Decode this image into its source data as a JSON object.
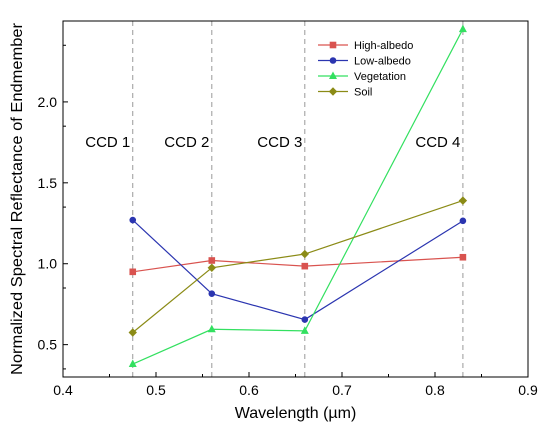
{
  "chart_data": {
    "type": "line",
    "title": "",
    "xlabel": "Wavelength (µm)",
    "ylabel": "Normalized Spectral Reflectance of Endmember",
    "xlim": [
      0.4,
      0.9
    ],
    "ylim": [
      0.3,
      2.5
    ],
    "xticks": [
      "0.4",
      "0.5",
      "0.6",
      "0.7",
      "0.8",
      "0.9"
    ],
    "yticks": [
      "0.5",
      "1.0",
      "1.5",
      "2.0"
    ],
    "x": [
      0.475,
      0.56,
      0.66,
      0.83
    ],
    "series": [
      {
        "name": "High-albedo",
        "color": "#d9534f",
        "marker": "square",
        "values": [
          0.95,
          1.02,
          0.985,
          1.04
        ]
      },
      {
        "name": "Low-albedo",
        "color": "#2b35b0",
        "marker": "circle",
        "values": [
          1.27,
          0.815,
          0.655,
          1.265
        ]
      },
      {
        "name": "Vegetation",
        "color": "#33e060",
        "marker": "triangle",
        "values": [
          0.38,
          0.595,
          0.585,
          2.45
        ]
      },
      {
        "name": "Soil",
        "color": "#8b8b16",
        "marker": "diamond",
        "values": [
          0.575,
          0.975,
          1.06,
          1.39
        ]
      }
    ],
    "ccd_bands": [
      {
        "label": "CCD 1",
        "x": 0.475
      },
      {
        "label": "CCD 2",
        "x": 0.56
      },
      {
        "label": "CCD 3",
        "x": 0.66
      },
      {
        "label": "CCD 4",
        "x": 0.83
      }
    ],
    "legend_position": "top-right",
    "grid": false
  }
}
